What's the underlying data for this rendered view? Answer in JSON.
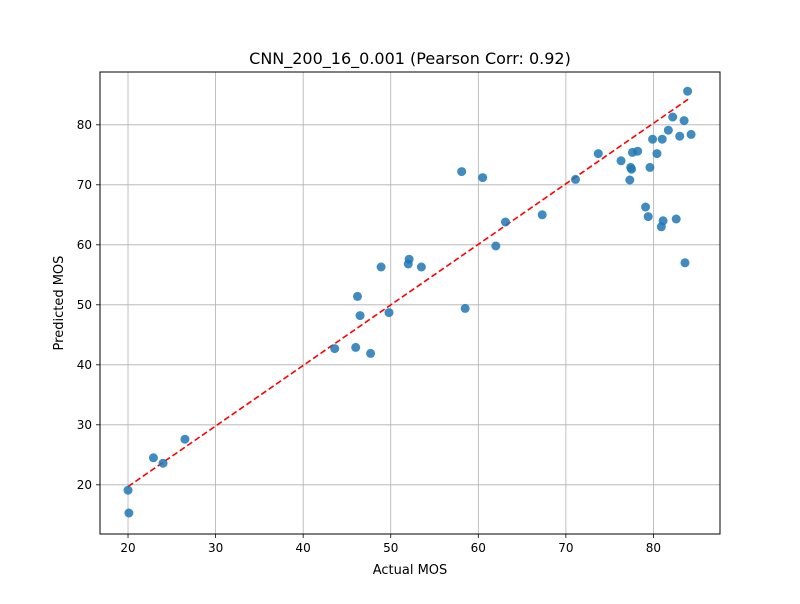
{
  "chart_data": {
    "type": "scatter",
    "title": "CNN_200_16_0.001 (Pearson Corr: 0.92)",
    "xlabel": "Actual MOS",
    "ylabel": "Predicted MOS",
    "xlim": [
      16.8,
      87.6
    ],
    "ylim": [
      11.8,
      88.8
    ],
    "xticks": [
      20,
      30,
      40,
      50,
      60,
      70,
      80
    ],
    "yticks": [
      20,
      30,
      40,
      50,
      60,
      70,
      80
    ],
    "grid": true,
    "legend": "none",
    "point_color": "#1f77b4",
    "fit_line_color": "#ff0000",
    "fit_line": {
      "x": [
        20.0,
        84.2
      ],
      "y": [
        19.7,
        84.5
      ]
    },
    "points": [
      {
        "x": 20.0,
        "y": 19.1
      },
      {
        "x": 20.1,
        "y": 15.3
      },
      {
        "x": 22.9,
        "y": 24.5
      },
      {
        "x": 24.0,
        "y": 23.6
      },
      {
        "x": 26.5,
        "y": 27.6
      },
      {
        "x": 43.6,
        "y": 42.7
      },
      {
        "x": 46.0,
        "y": 42.9
      },
      {
        "x": 46.2,
        "y": 51.4
      },
      {
        "x": 46.5,
        "y": 48.2
      },
      {
        "x": 47.7,
        "y": 41.9
      },
      {
        "x": 48.9,
        "y": 56.3
      },
      {
        "x": 49.8,
        "y": 48.7
      },
      {
        "x": 52.0,
        "y": 56.8
      },
      {
        "x": 52.1,
        "y": 57.6
      },
      {
        "x": 53.5,
        "y": 56.3
      },
      {
        "x": 58.1,
        "y": 72.2
      },
      {
        "x": 58.5,
        "y": 49.4
      },
      {
        "x": 60.5,
        "y": 71.2
      },
      {
        "x": 62.0,
        "y": 59.8
      },
      {
        "x": 63.1,
        "y": 63.8
      },
      {
        "x": 67.3,
        "y": 65.0
      },
      {
        "x": 71.1,
        "y": 70.9
      },
      {
        "x": 73.7,
        "y": 75.2
      },
      {
        "x": 76.3,
        "y": 74.0
      },
      {
        "x": 77.3,
        "y": 70.8
      },
      {
        "x": 77.4,
        "y": 72.9
      },
      {
        "x": 77.5,
        "y": 72.6
      },
      {
        "x": 77.6,
        "y": 75.4
      },
      {
        "x": 78.2,
        "y": 75.6
      },
      {
        "x": 79.1,
        "y": 66.3
      },
      {
        "x": 79.4,
        "y": 64.7
      },
      {
        "x": 79.6,
        "y": 72.9
      },
      {
        "x": 79.9,
        "y": 77.6
      },
      {
        "x": 80.4,
        "y": 75.2
      },
      {
        "x": 80.9,
        "y": 63.0
      },
      {
        "x": 81.0,
        "y": 77.6
      },
      {
        "x": 81.1,
        "y": 64.0
      },
      {
        "x": 81.7,
        "y": 79.1
      },
      {
        "x": 82.2,
        "y": 81.3
      },
      {
        "x": 82.6,
        "y": 64.3
      },
      {
        "x": 83.0,
        "y": 78.1
      },
      {
        "x": 83.5,
        "y": 80.7
      },
      {
        "x": 83.6,
        "y": 57.0
      },
      {
        "x": 83.9,
        "y": 85.6
      },
      {
        "x": 84.3,
        "y": 78.4
      }
    ]
  }
}
